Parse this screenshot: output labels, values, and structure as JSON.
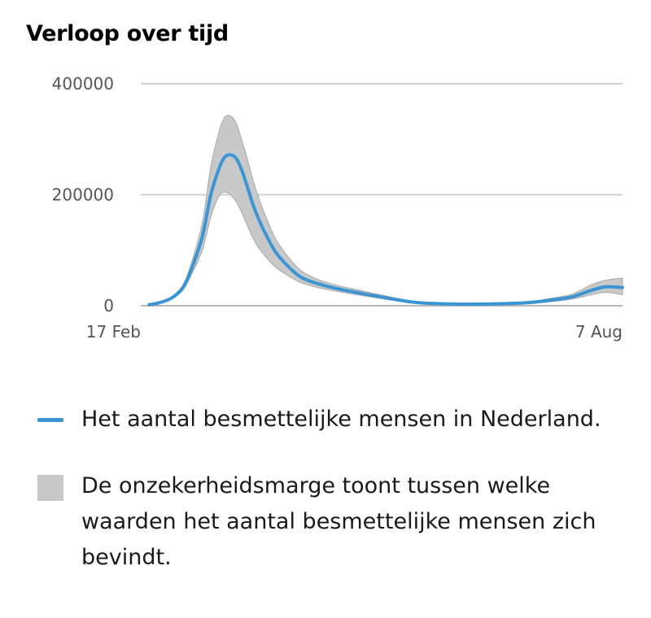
{
  "title": "Verloop over tijd",
  "chart_data": {
    "type": "area",
    "x_start": "2020-02-17",
    "x_end": "2020-08-07",
    "xticks": [
      "17 Feb",
      "7 Aug"
    ],
    "ylim": [
      0,
      400000
    ],
    "yticks": [
      {
        "value": 0,
        "label": "0"
      },
      {
        "value": 200000,
        "label": "200000"
      },
      {
        "value": 400000,
        "label": "400000"
      }
    ],
    "grid": true,
    "series": [
      {
        "name": "Het aantal besmettelijke mensen in Nederland.",
        "color": "#3b94d4",
        "x": [
          "2020-02-20",
          "2020-02-24",
          "2020-02-28",
          "2020-03-03",
          "2020-03-06",
          "2020-03-10",
          "2020-03-13",
          "2020-03-16",
          "2020-03-18",
          "2020-03-20",
          "2020-03-22",
          "2020-03-24",
          "2020-03-26",
          "2020-03-28",
          "2020-03-30",
          "2020-04-02",
          "2020-04-05",
          "2020-04-09",
          "2020-04-14",
          "2020-04-20",
          "2020-04-27",
          "2020-05-05",
          "2020-05-15",
          "2020-05-25",
          "2020-06-04",
          "2020-06-14",
          "2020-06-24",
          "2020-07-04",
          "2020-07-12",
          "2020-07-20",
          "2020-07-27",
          "2020-08-01",
          "2020-08-07"
        ],
        "y": [
          2000,
          6000,
          14000,
          32000,
          65000,
          125000,
          200000,
          248000,
          268000,
          272000,
          266000,
          245000,
          215000,
          183000,
          157000,
          125000,
          98000,
          74000,
          52000,
          40000,
          31000,
          23000,
          14000,
          6000,
          3500,
          3000,
          3500,
          5500,
          10000,
          16000,
          28000,
          34000,
          33000
        ]
      },
      {
        "name": "De onzekerheidsmarge toont tussen welke waarden het aantal besmettelijke mensen zich bevindt.",
        "color": "#c8c8c8",
        "type": "band",
        "x": [
          "2020-02-20",
          "2020-02-24",
          "2020-02-28",
          "2020-03-03",
          "2020-03-06",
          "2020-03-10",
          "2020-03-13",
          "2020-03-16",
          "2020-03-18",
          "2020-03-20",
          "2020-03-22",
          "2020-03-24",
          "2020-03-26",
          "2020-03-28",
          "2020-03-30",
          "2020-04-02",
          "2020-04-05",
          "2020-04-09",
          "2020-04-14",
          "2020-04-20",
          "2020-04-27",
          "2020-05-05",
          "2020-05-15",
          "2020-05-25",
          "2020-06-04",
          "2020-06-14",
          "2020-06-24",
          "2020-07-04",
          "2020-07-12",
          "2020-07-20",
          "2020-07-27",
          "2020-08-01",
          "2020-08-07"
        ],
        "low": [
          1500,
          5000,
          12000,
          28000,
          55000,
          100000,
          160000,
          198000,
          205000,
          200000,
          188000,
          168000,
          145000,
          122000,
          105000,
          86000,
          70000,
          56000,
          42000,
          33000,
          26000,
          19000,
          11000,
          4500,
          2500,
          2000,
          2500,
          4000,
          7000,
          12000,
          20000,
          24000,
          20000
        ],
        "high": [
          2500,
          7000,
          16000,
          37000,
          76000,
          150000,
          250000,
          315000,
          340000,
          342000,
          330000,
          300000,
          265000,
          228000,
          196000,
          156000,
          122000,
          92000,
          64000,
          48000,
          37000,
          28000,
          17000,
          7500,
          4500,
          4000,
          4500,
          7000,
          13000,
          21000,
          38000,
          46000,
          50000
        ]
      }
    ]
  },
  "legend": [
    {
      "swatch": "line",
      "label": "Het aantal besmettelijke mensen in Nederland."
    },
    {
      "swatch": "band",
      "label": "De onzekerheidsmarge toont tussen welke waarden het aantal besmettelijke mensen zich bevindt."
    }
  ]
}
